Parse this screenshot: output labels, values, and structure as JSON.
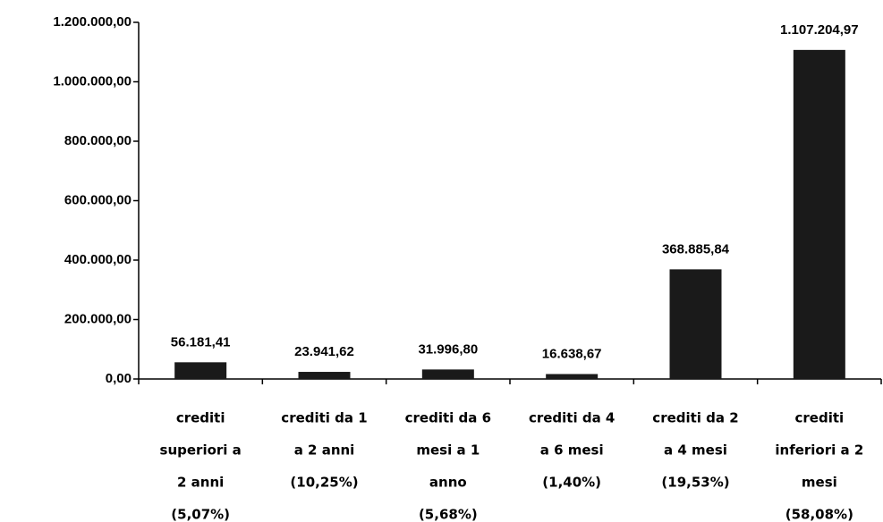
{
  "chart_data": {
    "type": "bar",
    "categories": [
      [
        "crediti",
        "superiori a",
        "2 anni",
        "(5,07%)"
      ],
      [
        "crediti da 1",
        "a 2 anni",
        "(10,25%)"
      ],
      [
        "crediti da 6",
        "mesi a 1",
        "anno",
        "(5,68%)"
      ],
      [
        "crediti da 4",
        "a 6 mesi",
        "(1,40%)"
      ],
      [
        "crediti da 2",
        "a 4 mesi",
        "(19,53%)"
      ],
      [
        "crediti",
        "inferiori a 2",
        "mesi",
        "(58,08%)"
      ]
    ],
    "values": [
      56181.41,
      23941.62,
      31996.8,
      16638.67,
      368885.84,
      1107204.97
    ],
    "value_labels": [
      "56.181,41",
      "23.941,62",
      "31.996,80",
      "16.638,67",
      "368.885,84",
      "1.107.204,97"
    ],
    "color": "#1a1a1a",
    "ylim": [
      0,
      1200000
    ],
    "yticks": [
      {
        "value": 0,
        "label": "0,00"
      },
      {
        "value": 200000,
        "label": "200.000,00"
      },
      {
        "value": 400000,
        "label": "400.000,00"
      },
      {
        "value": 600000,
        "label": "600.000,00"
      },
      {
        "value": 800000,
        "label": "800.000,00"
      },
      {
        "value": 1000000,
        "label": "1.000.000,00"
      },
      {
        "value": 1200000,
        "label": "1.200.000,00"
      }
    ],
    "grid": false
  }
}
